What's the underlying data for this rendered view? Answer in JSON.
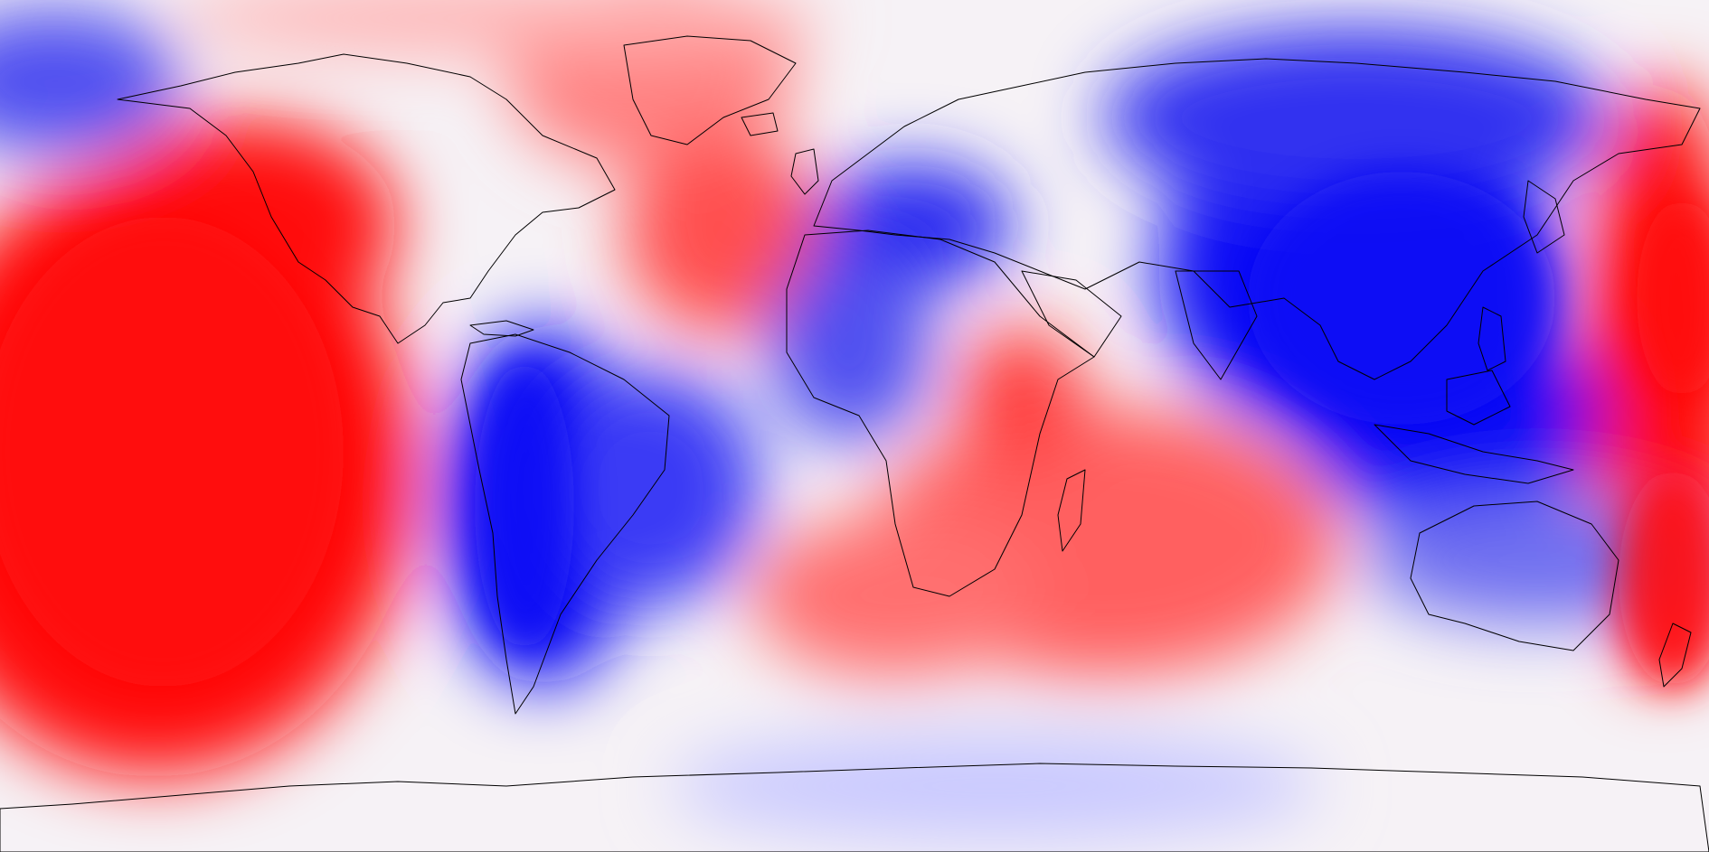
{
  "map": {
    "projection": "equirectangular",
    "field": "anomaly",
    "colormap": {
      "negative": "#0a0af5",
      "neutral": "#ffffff",
      "positive": "#fa0a0a"
    },
    "coastline_color": "#000000",
    "has_legend": false,
    "has_title": false
  }
}
